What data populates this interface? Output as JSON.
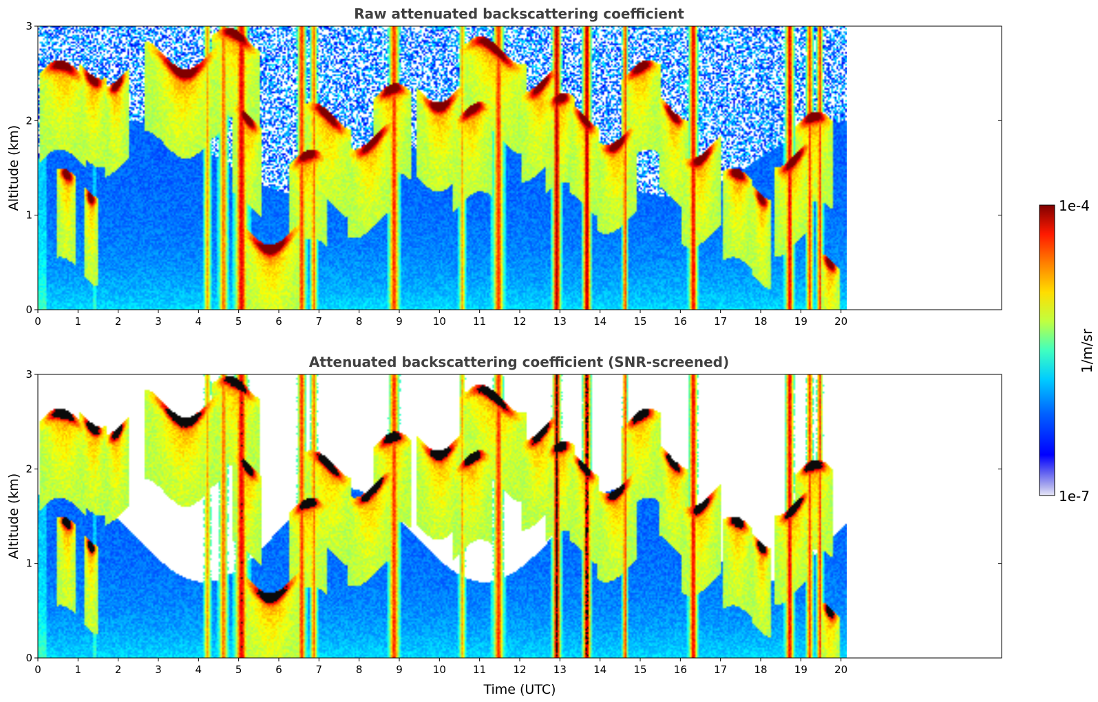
{
  "chart_data": [
    {
      "type": "heatmap",
      "id": "raw",
      "title": "Raw attenuated backscattering coefficient",
      "ylabel": "Altitude (km)",
      "xlabel": "",
      "xlim": [
        0,
        24
      ],
      "ylim": [
        0,
        3
      ],
      "xticks": [
        "0",
        "1",
        "2",
        "3",
        "4",
        "5",
        "6",
        "7",
        "8",
        "9",
        "10",
        "11",
        "12",
        "13",
        "14",
        "15",
        "16",
        "17",
        "18",
        "19",
        "20"
      ],
      "yticks": [
        "0",
        "1",
        "2",
        "3"
      ],
      "data_end_hour": 20.1,
      "screened": false
    },
    {
      "type": "heatmap",
      "id": "screened",
      "title": "Attenuated backscattering coefficient (SNR-screened)",
      "ylabel": "Altitude (km)",
      "xlabel": "Time (UTC)",
      "xlim": [
        0,
        24
      ],
      "ylim": [
        0,
        3
      ],
      "xticks": [
        "0",
        "1",
        "2",
        "3",
        "4",
        "5",
        "6",
        "7",
        "8",
        "9",
        "10",
        "11",
        "12",
        "13",
        "14",
        "15",
        "16",
        "17",
        "18",
        "19",
        "20"
      ],
      "yticks": [
        "0",
        "1",
        "2",
        "3"
      ],
      "data_end_hour": 20.1,
      "screened": true
    }
  ],
  "colorbar": {
    "label": "1/m/sr",
    "max_label": "1e-4",
    "min_label": "1e-7",
    "colormap": "jet",
    "low_color": "#e6e6f5",
    "high_color": "#800000"
  },
  "clouds": [
    {
      "t": 0.6,
      "h": 2.45,
      "w": 0.5
    },
    {
      "t": 1.35,
      "h": 2.55,
      "w": 0.3
    },
    {
      "t": 0.7,
      "h": 1.3,
      "w": 0.2
    },
    {
      "t": 1.3,
      "h": 1.28,
      "w": 0.15
    },
    {
      "t": 1.95,
      "h": 2.45,
      "w": 0.25
    },
    {
      "t": 3.6,
      "h": 2.65,
      "w": 0.8
    },
    {
      "t": 4.9,
      "h": 2.8,
      "w": 0.5
    },
    {
      "t": 5.2,
      "h": 2.0,
      "w": 0.3
    },
    {
      "t": 5.8,
      "h": 0.78,
      "w": 0.7
    },
    {
      "t": 6.7,
      "h": 1.5,
      "w": 0.4
    },
    {
      "t": 7.2,
      "h": 2.0,
      "w": 0.5
    },
    {
      "t": 8.3,
      "h": 1.8,
      "w": 0.5
    },
    {
      "t": 8.8,
      "h": 2.2,
      "w": 0.4
    },
    {
      "t": 10.0,
      "h": 2.3,
      "w": 0.5
    },
    {
      "t": 10.8,
      "h": 2.0,
      "w": 0.4
    },
    {
      "t": 11.3,
      "h": 2.7,
      "w": 0.7
    },
    {
      "t": 12.5,
      "h": 2.4,
      "w": 0.4
    },
    {
      "t": 13.0,
      "h": 2.1,
      "w": 0.3
    },
    {
      "t": 13.6,
      "h": 2.0,
      "w": 0.3
    },
    {
      "t": 14.4,
      "h": 1.85,
      "w": 0.4
    },
    {
      "t": 15.0,
      "h": 2.45,
      "w": 0.4
    },
    {
      "t": 15.8,
      "h": 2.1,
      "w": 0.3
    },
    {
      "t": 16.5,
      "h": 1.7,
      "w": 0.4
    },
    {
      "t": 17.4,
      "h": 1.3,
      "w": 0.3
    },
    {
      "t": 18.0,
      "h": 1.25,
      "w": 0.2
    },
    {
      "t": 18.8,
      "h": 1.6,
      "w": 0.4
    },
    {
      "t": 19.3,
      "h": 1.9,
      "w": 0.4
    },
    {
      "t": 19.7,
      "h": 0.4,
      "w": 0.2
    }
  ],
  "precip": [
    {
      "t": 4.2,
      "w": 0.08,
      "strength": 0.6
    },
    {
      "t": 4.6,
      "w": 0.1,
      "strength": 0.7
    },
    {
      "t": 5.05,
      "w": 0.15,
      "strength": 0.9
    },
    {
      "t": 6.55,
      "w": 0.1,
      "strength": 0.8
    },
    {
      "t": 6.85,
      "w": 0.08,
      "strength": 0.7
    },
    {
      "t": 8.85,
      "w": 0.12,
      "strength": 0.8
    },
    {
      "t": 10.55,
      "w": 0.07,
      "strength": 0.6
    },
    {
      "t": 11.45,
      "w": 0.12,
      "strength": 0.8
    },
    {
      "t": 12.9,
      "w": 0.1,
      "strength": 1.0
    },
    {
      "t": 13.65,
      "w": 0.1,
      "strength": 1.0
    },
    {
      "t": 14.6,
      "w": 0.06,
      "strength": 0.8
    },
    {
      "t": 16.3,
      "w": 0.1,
      "strength": 0.9
    },
    {
      "t": 18.7,
      "w": 0.1,
      "strength": 0.9
    },
    {
      "t": 19.2,
      "w": 0.08,
      "strength": 0.8
    },
    {
      "t": 19.45,
      "w": 0.07,
      "strength": 0.8
    }
  ]
}
